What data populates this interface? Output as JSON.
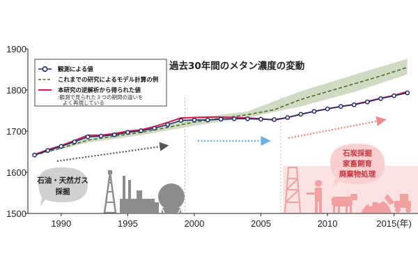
{
  "chart_data": {
    "type": "line",
    "title": "過去30年間のメタン濃度の変動",
    "xlabel": "",
    "ylabel": "",
    "x_tick_labels": [
      "1990",
      "1995",
      "2000",
      "2005",
      "2010",
      "2015"
    ],
    "x_unit_suffix": "(年)",
    "y_tick_labels": [
      "1500",
      "1600",
      "1700",
      "1800",
      "1900"
    ],
    "xlim": [
      1987.5,
      2016.8
    ],
    "ylim": [
      1500,
      1900
    ],
    "grid": false,
    "legend_position": "top-left",
    "series": [
      {
        "name": "観測による値",
        "color": "#1f2a6b",
        "x": [
          1988,
          1989,
          1990,
          1991,
          1992,
          1993,
          1994,
          1995,
          1996,
          1997,
          1998,
          1999,
          2000,
          2001,
          2002,
          2003,
          2004,
          2005,
          2006,
          2007,
          2008,
          2009,
          2010,
          2011,
          2012,
          2013,
          2014,
          2015,
          2016
        ],
        "values": [
          1642,
          1653,
          1663,
          1674,
          1686,
          1688,
          1691,
          1697,
          1701,
          1707,
          1716,
          1726,
          1727,
          1727,
          1729,
          1730,
          1730,
          1729,
          1728,
          1733,
          1741,
          1748,
          1754,
          1760,
          1764,
          1771,
          1779,
          1786,
          1793
        ]
      },
      {
        "name": "これまでの研究によるモデル計算の例",
        "color": "#4a6b2a",
        "x": [
          1988,
          1990,
          1992,
          1994,
          1996,
          1998,
          2000,
          2002,
          2004,
          2006,
          2008,
          2010,
          2012,
          2014,
          2016
        ],
        "values": [
          1642,
          1659,
          1678,
          1688,
          1697,
          1709,
          1722,
          1731,
          1740,
          1752,
          1777,
          1796,
          1815,
          1834,
          1855
        ]
      },
      {
        "name": "本研究の逆解析から得られた値",
        "color": "#d4174c",
        "x": [
          1988,
          1989,
          1990,
          1991,
          1992,
          1993,
          1994,
          1995,
          1996,
          1997,
          1998,
          1999,
          2000,
          2001,
          2002,
          2003,
          2004,
          2005,
          2006,
          2007,
          2008,
          2009,
          2010,
          2011,
          2012,
          2013,
          2014,
          2015,
          2016
        ],
        "values": [
          1643,
          1655,
          1665,
          1677,
          1690,
          1690,
          1694,
          1700,
          1703,
          1711,
          1721,
          1732,
          1733,
          1734,
          1734,
          1733,
          1732,
          1730,
          1727,
          1733,
          1741,
          1748,
          1754,
          1760,
          1765,
          1772,
          1780,
          1787,
          1796
        ]
      }
    ],
    "uncertainty_band": {
      "x": [
        1988,
        1992,
        1996,
        2000,
        2004,
        2008,
        2012,
        2016
      ],
      "upper": [
        1645,
        1683,
        1702,
        1732,
        1748,
        1797,
        1837,
        1876
      ],
      "lower": [
        1640,
        1672,
        1690,
        1713,
        1733,
        1760,
        1795,
        1838
      ]
    },
    "period_dividers": [
      1999.3,
      2006.5
    ],
    "legend_note": ":観測で見られた３つの期間の違いを",
    "legend_note_line2": "よく再現している",
    "annotations": {
      "left_bubble": {
        "line1": "石油・天然ガス",
        "line2": "採掘"
      },
      "right_bubble": {
        "line1": "石炭採掘",
        "line2": "家畜飼育",
        "line3": "廃棄物処理"
      }
    },
    "colors": {
      "arrow_period1": "#555555",
      "arrow_period2": "#6ab0e6",
      "arrow_period3": "#f08b8b",
      "band_fill": "#c8d5b9",
      "bubble_left": "#d0d0d0",
      "bubble_right": "#f9cfcf"
    },
    "icons": [
      "oil-derrick-icon",
      "refinery-factory-icon",
      "gas-tank-icon",
      "coal-mine-tower-icon",
      "farmer-icon",
      "cow-icon",
      "waste-pile-icon",
      "excavator-icon"
    ]
  }
}
